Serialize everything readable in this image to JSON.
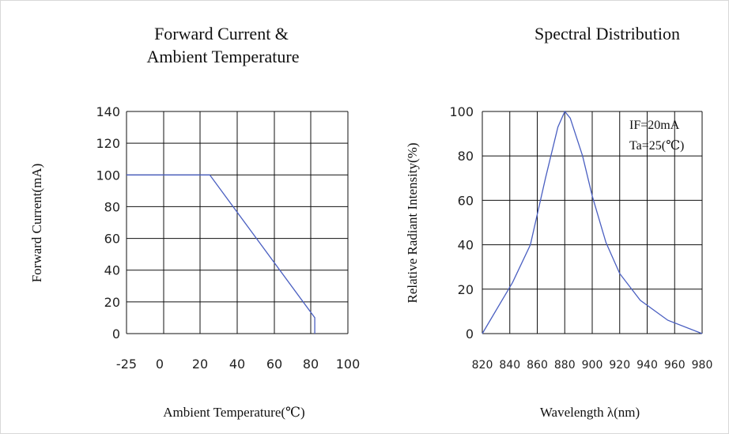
{
  "chart_data": [
    {
      "type": "line",
      "title_lines": [
        "Forward Current &",
        "Ambient Temperature"
      ],
      "xlabel": "Ambient Temperature(℃)",
      "ylabel": "Forward Current(mA)",
      "x_ticks": [
        "-25",
        "0",
        "20",
        "40",
        "60",
        "80",
        "100"
      ],
      "y_ticks": [
        "0",
        "20",
        "40",
        "60",
        "80",
        "100",
        "120",
        "140"
      ],
      "xlim": [
        -25,
        100
      ],
      "ylim": [
        0,
        140
      ],
      "grid": true,
      "series": [
        {
          "x": [
            -25,
            25,
            82,
            82
          ],
          "y": [
            100,
            100,
            10,
            0
          ]
        }
      ]
    },
    {
      "type": "line",
      "title_lines": [
        "Spectral Distribution"
      ],
      "xlabel": "Wavelength λ(nm)",
      "ylabel": "Relative Radiant Intensity(%)",
      "x_ticks": [
        "820",
        "840",
        "860",
        "880",
        "900",
        "920",
        "940",
        "960",
        "980"
      ],
      "y_ticks": [
        "0",
        "20",
        "40",
        "60",
        "80",
        "100"
      ],
      "xlim": [
        820,
        980
      ],
      "ylim": [
        0,
        100
      ],
      "grid": true,
      "annotations": [
        "IF=20mA",
        "Ta=25(℃)"
      ],
      "series": [
        {
          "x": [
            820,
            842,
            855,
            866,
            875,
            880,
            884,
            893,
            900,
            910,
            920,
            935,
            955,
            980
          ],
          "y": [
            0,
            23,
            40,
            70,
            93,
            100,
            97,
            80,
            62,
            41,
            27,
            15,
            6,
            0
          ]
        }
      ]
    }
  ]
}
